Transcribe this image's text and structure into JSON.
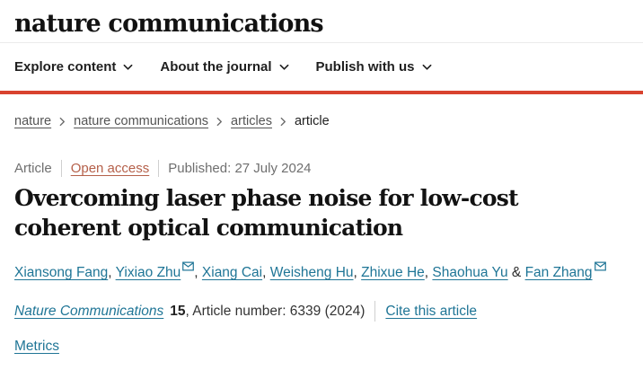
{
  "header": {
    "logo": "nature communications"
  },
  "nav": {
    "items": [
      {
        "label": "Explore content"
      },
      {
        "label": "About the journal"
      },
      {
        "label": "Publish with us"
      }
    ]
  },
  "breadcrumb": {
    "items": [
      {
        "label": "nature",
        "link": true
      },
      {
        "label": "nature communications",
        "link": true
      },
      {
        "label": "articles",
        "link": true
      },
      {
        "label": "article",
        "link": false
      }
    ]
  },
  "article": {
    "type_label": "Article",
    "access_label": "Open access",
    "published_label": "Published: 27 July 2024",
    "title": "Overcoming laser phase noise for low-cost coherent optical communication",
    "authors": [
      {
        "name": "Xiansong Fang",
        "email": false
      },
      {
        "name": "Yixiao Zhu",
        "email": true
      },
      {
        "name": "Xiang Cai",
        "email": false
      },
      {
        "name": "Weisheng Hu",
        "email": false
      },
      {
        "name": "Zhixue He",
        "email": false
      },
      {
        "name": "Shaohua Yu",
        "email": false
      },
      {
        "name": "Fan Zhang",
        "email": true
      }
    ],
    "citation": {
      "journal": "Nature Communications",
      "volume": "15",
      "article_number_text": ", Article number: 6339 (2024)",
      "cite_link": "Cite this article"
    },
    "metrics_link": "Metrics"
  },
  "colors": {
    "rule-red": "#d8432f",
    "link-teal": "#1f7596",
    "open-access": "#b5604a"
  }
}
